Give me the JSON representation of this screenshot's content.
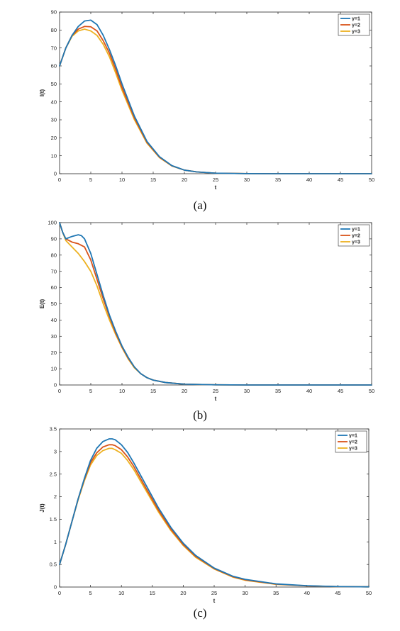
{
  "panels": [
    {
      "caption": "(a)",
      "chart_data": {
        "type": "line",
        "xlabel": "t",
        "ylabel": "I(t)",
        "xlim": [
          0,
          50
        ],
        "ylim": [
          0,
          90
        ],
        "xticks": [
          0,
          5,
          10,
          15,
          20,
          25,
          30,
          35,
          40,
          45,
          50
        ],
        "yticks": [
          0,
          10,
          20,
          30,
          40,
          50,
          60,
          70,
          80,
          90
        ],
        "grid": false,
        "legend": "top-right",
        "series": [
          {
            "name": "γ=1",
            "color": "#1f77b4",
            "x": [
              0,
              1,
              2,
              3,
              4,
              5,
              6,
              7,
              8,
              9,
              10,
              12,
              14,
              16,
              18,
              20,
              22,
              25,
              30,
              35,
              40,
              45,
              50
            ],
            "y": [
              60,
              70,
              77,
              82,
              85,
              85.5,
              83,
              77,
              69,
              60,
              50,
              32,
              18,
              9.5,
              4.5,
              2,
              1,
              0.3,
              0.05,
              0,
              0,
              0,
              0
            ]
          },
          {
            "name": "γ=2",
            "color": "#d95319",
            "x": [
              0,
              1,
              2,
              3,
              4,
              5,
              6,
              7,
              8,
              9,
              10,
              12,
              14,
              16,
              18,
              20,
              22,
              25,
              30,
              35,
              40,
              45,
              50
            ],
            "y": [
              60,
              70,
              77,
              80.5,
              82,
              81.8,
              79.5,
              74,
              67,
              58,
              48,
              31,
              17.5,
              9.2,
              4.4,
              2,
              1,
              0.3,
              0.05,
              0,
              0,
              0,
              0
            ]
          },
          {
            "name": "γ=3",
            "color": "#edb120",
            "x": [
              0,
              1,
              2,
              3,
              4,
              5,
              6,
              7,
              8,
              9,
              10,
              12,
              14,
              16,
              18,
              20,
              22,
              25,
              30,
              35,
              40,
              45,
              50
            ],
            "y": [
              60,
              70,
              76.5,
              79.5,
              80.5,
              79.5,
              77,
              72,
              65,
              56,
              46.5,
              30,
              17,
              9,
              4.3,
              2,
              1,
              0.3,
              0.05,
              0,
              0,
              0,
              0
            ]
          }
        ]
      }
    },
    {
      "caption": "(b)",
      "chart_data": {
        "type": "line",
        "xlabel": "t",
        "ylabel": "E(t)",
        "xlim": [
          0,
          50
        ],
        "ylim": [
          0,
          100
        ],
        "xticks": [
          0,
          5,
          10,
          15,
          20,
          25,
          30,
          35,
          40,
          45,
          50
        ],
        "yticks": [
          0,
          10,
          20,
          30,
          40,
          50,
          60,
          70,
          80,
          90,
          100
        ],
        "grid": false,
        "legend": "top-right",
        "series": [
          {
            "name": "γ=1",
            "color": "#1f77b4",
            "x": [
              0,
              0.5,
              1,
              2,
              3,
              3.5,
              4,
              5,
              6,
              7,
              8,
              9,
              10,
              11,
              12,
              13,
              14,
              15,
              17,
              20,
              25,
              30,
              40,
              50
            ],
            "y": [
              100,
              94,
              90,
              91.5,
              92.5,
              92,
              90,
              81,
              68,
              55,
              43,
              33,
              24,
              17,
              11,
              7,
              4.5,
              3,
              1.5,
              0.5,
              0.1,
              0,
              0,
              0
            ]
          },
          {
            "name": "γ=2",
            "color": "#d95319",
            "x": [
              0,
              0.5,
              1,
              2,
              3,
              4,
              5,
              6,
              7,
              8,
              9,
              10,
              11,
              12,
              13,
              14,
              15,
              17,
              20,
              25,
              30,
              40,
              50
            ],
            "y": [
              100,
              94,
              90,
              88,
              87,
              85,
              77,
              65,
              53,
              42,
              32,
              23.5,
              16.5,
              11,
              7,
              4.5,
              3,
              1.5,
              0.5,
              0.1,
              0,
              0,
              0
            ]
          },
          {
            "name": "γ=3",
            "color": "#edb120",
            "x": [
              0,
              0.5,
              1,
              2,
              3,
              4,
              5,
              6,
              7,
              8,
              9,
              10,
              11,
              12,
              13,
              14,
              15,
              17,
              20,
              25,
              30,
              40,
              50
            ],
            "y": [
              100,
              94,
              89,
              85,
              81,
              76,
              70,
              61,
              50,
              40,
              31,
              23,
              16,
              10.5,
              7,
              4.5,
              3,
              1.5,
              0.5,
              0.1,
              0,
              0,
              0
            ]
          }
        ]
      }
    },
    {
      "caption": "(c)",
      "chart_data": {
        "type": "line",
        "xlabel": "t",
        "ylabel": "J(t)",
        "xlim": [
          0,
          50
        ],
        "ylim": [
          0,
          3.5
        ],
        "xticks": [
          0,
          5,
          10,
          15,
          20,
          25,
          30,
          35,
          40,
          45,
          50
        ],
        "yticks": [
          0,
          0.5,
          1,
          1.5,
          2,
          2.5,
          3,
          3.5
        ],
        "grid": false,
        "legend": "top-right",
        "series": [
          {
            "name": "γ=1",
            "color": "#1f77b4",
            "x": [
              0,
              1,
              2,
              3,
              4,
              5,
              6,
              7,
              8,
              8.5,
              9,
              10,
              11,
              12,
              14,
              16,
              18,
              20,
              22,
              25,
              28,
              30,
              35,
              40,
              45,
              50
            ],
            "y": [
              0.5,
              0.95,
              1.45,
              1.95,
              2.4,
              2.8,
              3.07,
              3.22,
              3.28,
              3.28,
              3.26,
              3.15,
              2.98,
              2.75,
              2.25,
              1.75,
              1.32,
              0.97,
              0.7,
              0.42,
              0.24,
              0.17,
              0.07,
              0.03,
              0.01,
              0.005
            ]
          },
          {
            "name": "γ=2",
            "color": "#d95319",
            "x": [
              0,
              1,
              2,
              3,
              4,
              5,
              6,
              7,
              8,
              8.5,
              9,
              10,
              11,
              12,
              14,
              16,
              18,
              20,
              22,
              25,
              28,
              30,
              35,
              40,
              45,
              50
            ],
            "y": [
              0.5,
              0.95,
              1.45,
              1.95,
              2.38,
              2.75,
              2.97,
              3.1,
              3.15,
              3.15,
              3.13,
              3.04,
              2.88,
              2.67,
              2.18,
              1.7,
              1.28,
              0.94,
              0.68,
              0.41,
              0.23,
              0.16,
              0.065,
              0.025,
              0.01,
              0.005
            ]
          },
          {
            "name": "γ=3",
            "color": "#edb120",
            "x": [
              0,
              1,
              2,
              3,
              4,
              5,
              6,
              7,
              8,
              8.5,
              9,
              10,
              11,
              12,
              14,
              16,
              18,
              20,
              22,
              25,
              28,
              30,
              35,
              40,
              45,
              50
            ],
            "y": [
              0.5,
              0.95,
              1.45,
              1.93,
              2.35,
              2.7,
              2.91,
              3.02,
              3.07,
              3.07,
              3.04,
              2.96,
              2.8,
              2.6,
              2.13,
              1.66,
              1.25,
              0.92,
              0.66,
              0.4,
              0.22,
              0.15,
              0.06,
              0.025,
              0.01,
              0.005
            ]
          }
        ]
      }
    }
  ]
}
